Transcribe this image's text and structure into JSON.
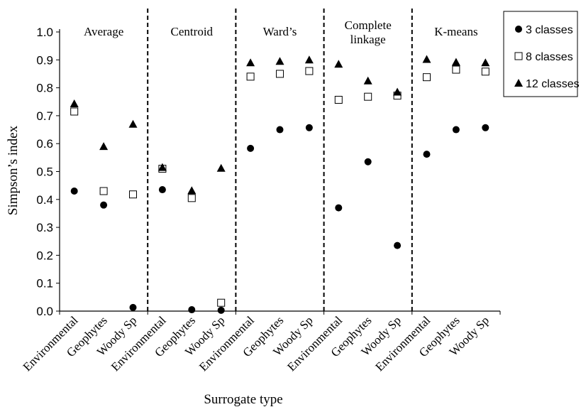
{
  "chart_data": {
    "type": "scatter",
    "xlabel": "Surrogate type",
    "ylabel": "Simpson’s index",
    "ylim": [
      0,
      1.0
    ],
    "yticks": [
      "0.0",
      "0.1",
      "0.2",
      "0.3",
      "0.4",
      "0.5",
      "0.6",
      "0.7",
      "0.8",
      "0.9",
      "1.0"
    ],
    "groups": [
      {
        "name": "Average",
        "name_lines": [
          "Average"
        ]
      },
      {
        "name": "Centroid",
        "name_lines": [
          "Centroid"
        ]
      },
      {
        "name": "Ward’s",
        "name_lines": [
          "Ward’s"
        ]
      },
      {
        "name": "Complete linkage",
        "name_lines": [
          "Complete",
          "linkage"
        ]
      },
      {
        "name": "K-means",
        "name_lines": [
          "K-means"
        ]
      }
    ],
    "categories": [
      "Environmental",
      "Geophytes",
      "Woody Sp"
    ],
    "series": [
      {
        "name": "3 classes",
        "marker": "circle",
        "values": [
          [
            0.43,
            0.38,
            0.013
          ],
          [
            0.435,
            0.005,
            0.003
          ],
          [
            0.583,
            0.65,
            0.657
          ],
          [
            0.37,
            0.535,
            0.235
          ],
          [
            0.562,
            0.65,
            0.657
          ]
        ]
      },
      {
        "name": "8 classes",
        "marker": "square",
        "values": [
          [
            0.715,
            0.43,
            0.418
          ],
          [
            0.51,
            0.405,
            0.03
          ],
          [
            0.84,
            0.85,
            0.86
          ],
          [
            0.757,
            0.768,
            0.772
          ],
          [
            0.838,
            0.865,
            0.858
          ]
        ]
      },
      {
        "name": "12 classes",
        "marker": "triangle",
        "values": [
          [
            0.743,
            0.59,
            0.67
          ],
          [
            0.515,
            0.432,
            0.512
          ],
          [
            0.89,
            0.895,
            0.9
          ],
          [
            0.885,
            0.825,
            0.785
          ],
          [
            0.902,
            0.892,
            0.89
          ]
        ]
      }
    ],
    "legend_position": "top-right",
    "grid": false,
    "group_separator": "dashed"
  }
}
